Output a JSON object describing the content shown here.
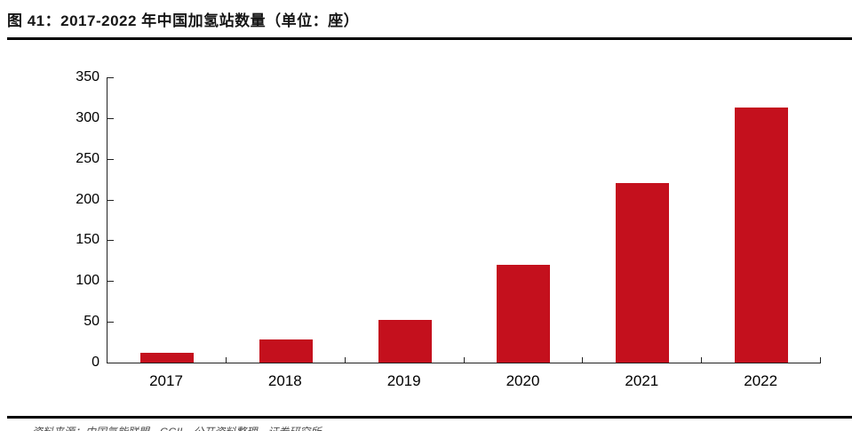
{
  "header": {
    "title": "图 41：2017-2022 年中国加氢站数量（单位：座）"
  },
  "chart_data": {
    "type": "bar",
    "title": "2017-2022 年中国加氢站数量",
    "unit_label": "单位：座",
    "categories": [
      "2017",
      "2018",
      "2019",
      "2020",
      "2021",
      "2022"
    ],
    "values": [
      12,
      28,
      52,
      120,
      220,
      313
    ],
    "series": [
      {
        "name": "中国加氢站数量（座）",
        "values": [
          12,
          28,
          52,
          120,
          220,
          313
        ]
      }
    ],
    "xlabel": "",
    "ylabel": "",
    "ylim": [
      0,
      350
    ],
    "yticks": [
      0,
      50,
      100,
      150,
      200,
      250,
      300,
      350
    ],
    "grid": false,
    "legend_position": "none",
    "bar_color": "#c4101d"
  },
  "footer": {
    "source_note": "资料来源：中国氢能联盟，GGII，公开资料整理，证券研究所"
  },
  "colors": {
    "bar": "#c4101d",
    "axis": "#222222",
    "rule": "#000000",
    "title_text": "#161616"
  }
}
